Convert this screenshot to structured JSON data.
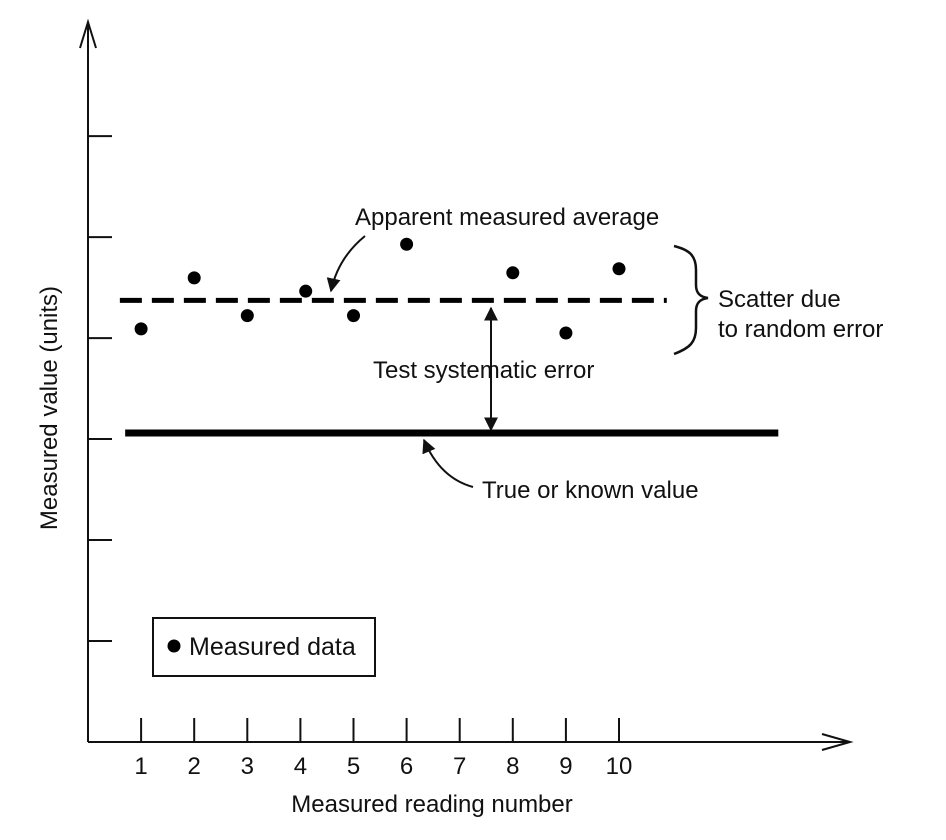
{
  "chart_data": {
    "type": "scatter",
    "xlabel": "Measured reading number",
    "ylabel": "Measured value (units)",
    "x_ticks": [
      "1",
      "2",
      "3",
      "4",
      "5",
      "6",
      "7",
      "8",
      "9",
      "10"
    ],
    "xlim": [
      0,
      13.5
    ],
    "ylim": [
      0,
      7.8
    ],
    "y_tick_count": 6,
    "grid": false,
    "series": [
      {
        "name": "Measured data",
        "points": [
          {
            "x": 1,
            "y": 4.05
          },
          {
            "x": 2,
            "y": 4.55
          },
          {
            "x": 3,
            "y": 4.18
          },
          {
            "x": 4.1,
            "y": 4.42
          },
          {
            "x": 5,
            "y": 4.18
          },
          {
            "x": 6,
            "y": 4.88
          },
          {
            "x": 8,
            "y": 4.6
          },
          {
            "x": 9,
            "y": 4.01
          },
          {
            "x": 10,
            "y": 4.64
          }
        ]
      }
    ],
    "reference_lines": [
      {
        "key": "apparent_average",
        "style": "dashed",
        "y": 4.33,
        "x_range": [
          0.6,
          10.9
        ]
      },
      {
        "key": "true_value",
        "style": "solid",
        "y": 3.03,
        "x_range": [
          0.7,
          13.0
        ]
      }
    ],
    "annotations": {
      "apparent_average": "Apparent measured average",
      "systematic_error": "Test systematic error",
      "true_value": "True or known value",
      "scatter_line1": "Scatter due",
      "scatter_line2": "to random error"
    },
    "legend": {
      "label": "Measured data",
      "position": "bottom-left"
    }
  }
}
